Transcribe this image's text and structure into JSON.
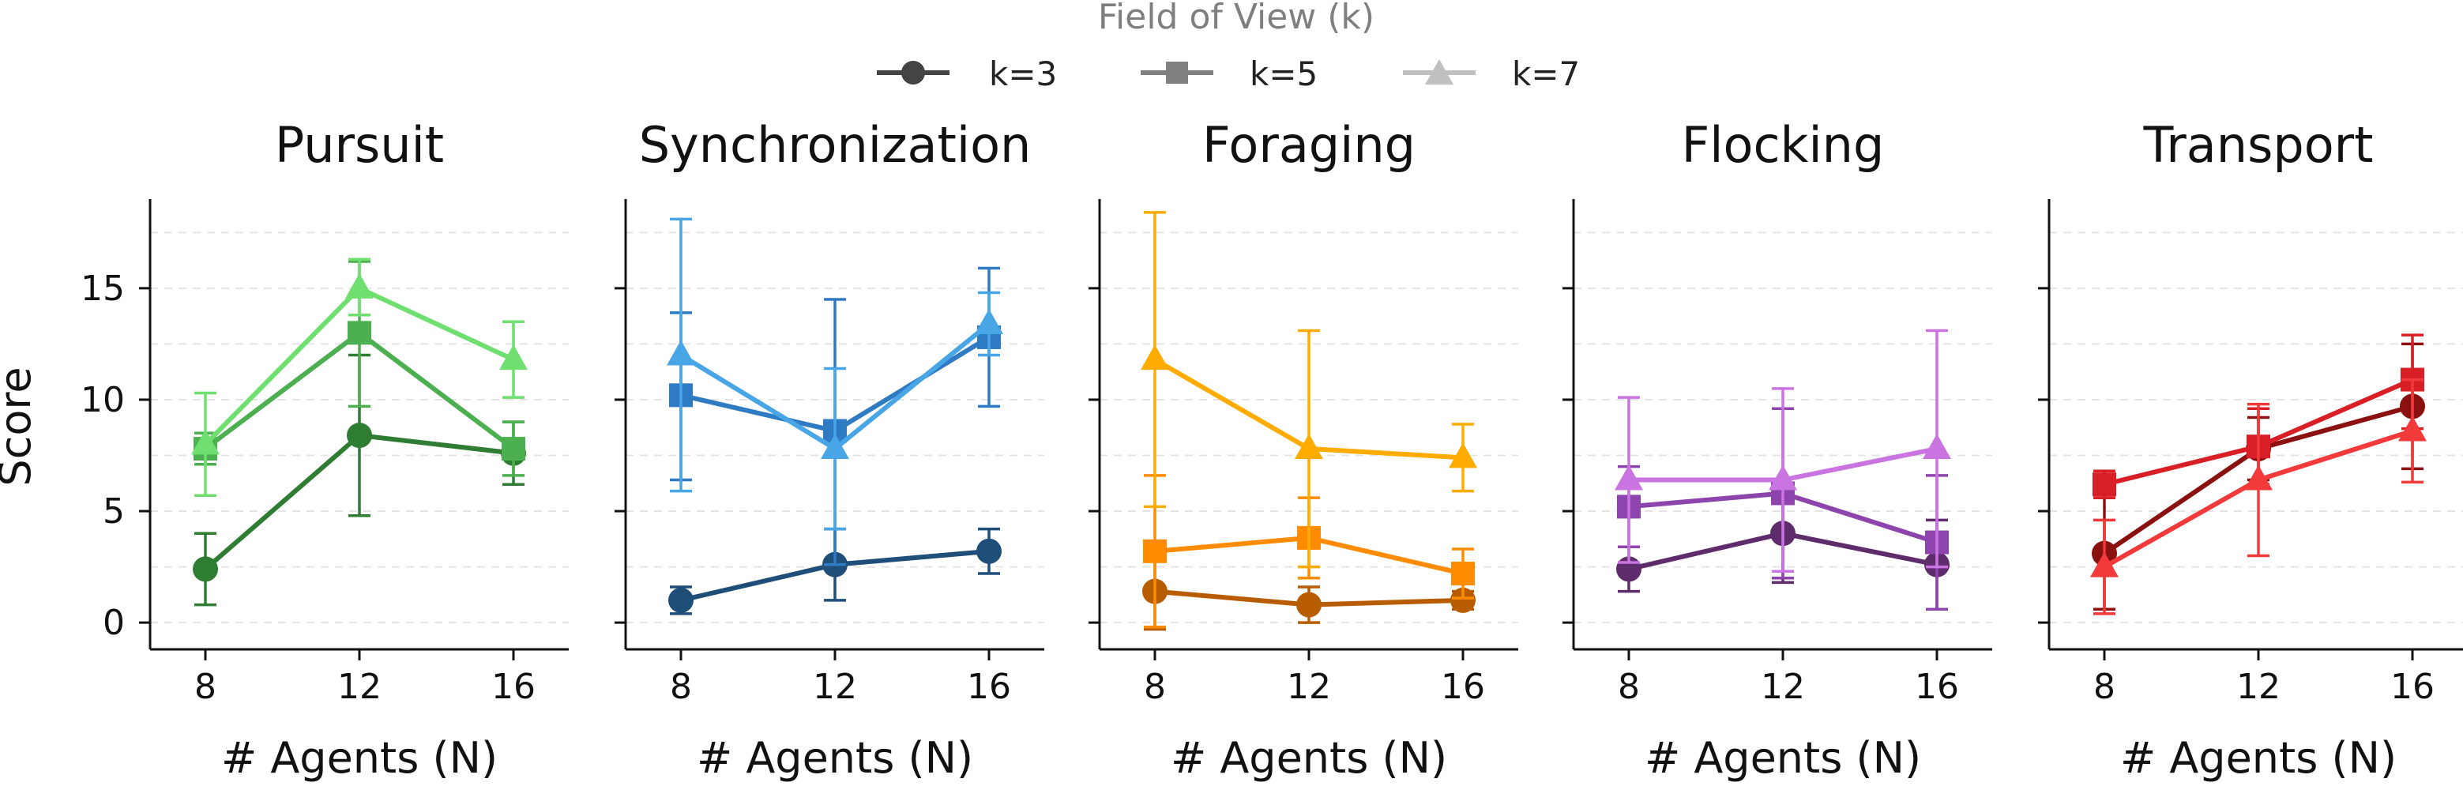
{
  "legend": {
    "title": "Field of View (k)",
    "entries": [
      {
        "label": "k=3",
        "marker": "circle",
        "color": "#444444"
      },
      {
        "label": "k=5",
        "marker": "square",
        "color": "#808080"
      },
      {
        "label": "k=7",
        "marker": "triangle",
        "color": "#c0c0c0"
      }
    ]
  },
  "chart_data": [
    {
      "type": "line",
      "title": "Pursuit",
      "xlabel": "# Agents (N)",
      "ylabel": "Score",
      "x": [
        8,
        12,
        16
      ],
      "xticks": [
        "8",
        "12",
        "16"
      ],
      "ylim": [
        -1.2,
        19
      ],
      "yticks": [
        "0",
        "5",
        "10",
        "15"
      ],
      "grid": true,
      "series": [
        {
          "name": "k=3",
          "marker": "circle",
          "color": "#2e7d32",
          "values": [
            2.4,
            8.4,
            7.6
          ],
          "err_low": [
            0.8,
            4.8,
            6.2
          ],
          "err_high": [
            4.0,
            12.0,
            9.0
          ]
        },
        {
          "name": "k=5",
          "marker": "square",
          "color": "#4caf50",
          "values": [
            7.8,
            13.0,
            7.8
          ],
          "err_low": [
            7.1,
            9.7,
            6.6
          ],
          "err_high": [
            8.5,
            16.2,
            9.0
          ]
        },
        {
          "name": "k=7",
          "marker": "triangle",
          "color": "#6fe06f",
          "values": [
            8.0,
            15.0,
            11.8
          ],
          "err_low": [
            5.7,
            13.8,
            10.1
          ],
          "err_high": [
            10.3,
            16.3,
            13.5
          ]
        }
      ]
    },
    {
      "type": "line",
      "title": "Synchronization",
      "xlabel": "# Agents (N)",
      "ylabel": "",
      "x": [
        8,
        12,
        16
      ],
      "xticks": [
        "8",
        "12",
        "16"
      ],
      "ylim": [
        -1.2,
        19
      ],
      "yticks": [],
      "grid": true,
      "series": [
        {
          "name": "k=3",
          "marker": "circle",
          "color": "#1f4e79",
          "values": [
            1.0,
            2.6,
            3.2
          ],
          "err_low": [
            0.4,
            1.0,
            2.2
          ],
          "err_high": [
            1.6,
            4.2,
            4.2
          ]
        },
        {
          "name": "k=5",
          "marker": "square",
          "color": "#2e7bc4",
          "values": [
            10.2,
            8.6,
            12.8
          ],
          "err_low": [
            6.4,
            2.6,
            9.7
          ],
          "err_high": [
            13.9,
            14.5,
            15.9
          ]
        },
        {
          "name": "k=7",
          "marker": "triangle",
          "color": "#49a6e6",
          "values": [
            12.0,
            7.8,
            13.4
          ],
          "err_low": [
            5.9,
            4.2,
            12.0
          ],
          "err_high": [
            18.1,
            11.4,
            14.8
          ]
        }
      ]
    },
    {
      "type": "line",
      "title": "Foraging",
      "xlabel": "# Agents (N)",
      "ylabel": "",
      "x": [
        8,
        12,
        16
      ],
      "xticks": [
        "8",
        "12",
        "16"
      ],
      "ylim": [
        -1.2,
        19
      ],
      "yticks": [],
      "grid": true,
      "series": [
        {
          "name": "k=3",
          "marker": "circle",
          "color": "#b85c00",
          "values": [
            1.4,
            0.8,
            1.0
          ],
          "err_low": [
            -0.3,
            0.0,
            0.6
          ],
          "err_high": [
            3.1,
            1.6,
            1.4
          ]
        },
        {
          "name": "k=5",
          "marker": "square",
          "color": "#ff8c00",
          "values": [
            3.2,
            3.8,
            2.2
          ],
          "err_low": [
            -0.2,
            2.0,
            1.1
          ],
          "err_high": [
            6.6,
            5.6,
            3.3
          ]
        },
        {
          "name": "k=7",
          "marker": "triangle",
          "color": "#ffab00",
          "values": [
            11.8,
            7.8,
            7.4
          ],
          "err_low": [
            5.2,
            2.5,
            5.9
          ],
          "err_high": [
            18.4,
            13.1,
            8.9
          ]
        }
      ]
    },
    {
      "type": "line",
      "title": "Flocking",
      "xlabel": "# Agents (N)",
      "ylabel": "",
      "x": [
        8,
        12,
        16
      ],
      "xticks": [
        "8",
        "12",
        "16"
      ],
      "ylim": [
        -1.2,
        19
      ],
      "yticks": [],
      "grid": true,
      "series": [
        {
          "name": "k=3",
          "marker": "circle",
          "color": "#5e2b6b",
          "values": [
            2.4,
            4.0,
            2.6
          ],
          "err_low": [
            1.4,
            1.8,
            0.6
          ],
          "err_high": [
            3.4,
            6.2,
            4.6
          ]
        },
        {
          "name": "k=5",
          "marker": "square",
          "color": "#8e44ad",
          "values": [
            5.2,
            5.8,
            3.6
          ],
          "err_low": [
            3.4,
            2.0,
            0.6
          ],
          "err_high": [
            7.0,
            9.6,
            6.6
          ]
        },
        {
          "name": "k=7",
          "marker": "triangle",
          "color": "#c974e0",
          "values": [
            6.4,
            6.4,
            7.8
          ],
          "err_low": [
            2.7,
            2.3,
            2.5
          ],
          "err_high": [
            10.1,
            10.5,
            13.1
          ]
        }
      ]
    },
    {
      "type": "line",
      "title": "Transport",
      "xlabel": "# Agents (N)",
      "ylabel": "",
      "x": [
        8,
        12,
        16
      ],
      "xticks": [
        "8",
        "12",
        "16"
      ],
      "ylim": [
        -1.2,
        19
      ],
      "yticks": [],
      "grid": true,
      "series": [
        {
          "name": "k=3",
          "marker": "circle",
          "color": "#8b1010",
          "values": [
            3.1,
            7.8,
            9.7
          ],
          "err_low": [
            0.6,
            6.4,
            6.9
          ],
          "err_high": [
            5.6,
            9.2,
            12.5
          ]
        },
        {
          "name": "k=5",
          "marker": "square",
          "color": "#d91f26",
          "values": [
            6.2,
            7.9,
            10.9
          ],
          "err_low": [
            5.6,
            6.2,
            8.7
          ],
          "err_high": [
            6.8,
            9.6,
            12.9
          ]
        },
        {
          "name": "k=7",
          "marker": "triangle",
          "color": "#f23a3a",
          "values": [
            2.5,
            6.4,
            8.6
          ],
          "err_low": [
            0.4,
            3.0,
            6.3
          ],
          "err_high": [
            4.6,
            9.8,
            10.9
          ]
        }
      ]
    }
  ]
}
